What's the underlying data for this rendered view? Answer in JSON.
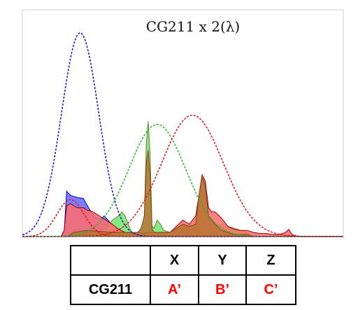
{
  "chart_data": {
    "type": "area",
    "title": "CG211 x 2(λ)",
    "xlabel": "",
    "ylabel": "",
    "grid": false,
    "legend": "none",
    "x_range": [
      0,
      100
    ],
    "y_range": [
      0,
      1
    ],
    "curves": [
      {
        "color": "#1010cc",
        "style": "dashed",
        "center": 18,
        "width": 5.8,
        "peak": 0.99
      },
      {
        "color": "#22bb22",
        "style": "dashed",
        "center": 42,
        "width": 8.8,
        "peak": 0.545
      },
      {
        "color": "#dd1111",
        "style": "dashed",
        "center": 53,
        "width": 9.6,
        "peak": 0.59
      },
      {
        "color": "#dd1111",
        "style": "dashed",
        "center": 15,
        "width": 4.2,
        "peak": 0.18
      }
    ],
    "spectra": [
      {
        "fill": "#6666ff",
        "stroke": "#0000cc",
        "x": [
          12,
          13,
          13.8,
          15,
          17,
          19,
          21,
          23,
          24.5,
          25.5,
          27,
          28.5,
          30,
          32
        ],
        "y": [
          0,
          0.02,
          0.22,
          0.2,
          0.19,
          0.185,
          0.13,
          0.09,
          0.085,
          0.1,
          0.075,
          0.03,
          0.01,
          0
        ]
      },
      {
        "fill": "#6ee86e",
        "stroke": "#777733",
        "x": [
          19,
          22,
          24,
          26,
          28,
          30,
          31,
          32,
          33,
          34,
          35,
          36,
          37,
          38,
          38.6,
          39.2,
          39.8,
          40.4,
          41,
          42,
          43,
          44,
          46,
          48,
          50,
          52,
          54,
          56,
          58,
          60,
          62,
          64,
          66,
          68,
          70,
          72
        ],
        "y": [
          0,
          0.01,
          0.02,
          0.04,
          0.08,
          0.1,
          0.12,
          0.1,
          0.06,
          0.02,
          0.01,
          0.02,
          0.04,
          0.1,
          0.45,
          0.56,
          0.4,
          0.05,
          0.04,
          0.08,
          0.06,
          0.03,
          0.02,
          0.04,
          0.06,
          0.05,
          0.04,
          0.02,
          0.03,
          0.05,
          0.06,
          0.05,
          0.04,
          0.03,
          0.02,
          0
        ]
      },
      {
        "fill": "#ff6b6b",
        "stroke": "#990000",
        "x": [
          12,
          13,
          13.8,
          15,
          17,
          19,
          20,
          22,
          24,
          26,
          28,
          30,
          32,
          34,
          36,
          38,
          40,
          42,
          44,
          46,
          48,
          50,
          52,
          54,
          55,
          56,
          57,
          58,
          59,
          60,
          62,
          64,
          66,
          68,
          70,
          72,
          74,
          76,
          78,
          80,
          82,
          83,
          84,
          86
        ],
        "y": [
          0,
          0.03,
          0.15,
          0.16,
          0.14,
          0.14,
          0.13,
          0.12,
          0.1,
          0.08,
          0.06,
          0.035,
          0.02,
          0.015,
          0.02,
          0.015,
          0.02,
          0.02,
          0.02,
          0.02,
          0.05,
          0.08,
          0.06,
          0.1,
          0.2,
          0.3,
          0.27,
          0.14,
          0.12,
          0.12,
          0.09,
          0.05,
          0.035,
          0.03,
          0.03,
          0.02,
          0.015,
          0.015,
          0.01,
          0.01,
          0.02,
          0.035,
          0.01,
          0
        ]
      },
      {
        "fill": "#b87333",
        "stroke": "#7a4a1a",
        "x": [
          14,
          16,
          20,
          24,
          28,
          32,
          34,
          36,
          37,
          38,
          38.6,
          39.2,
          39.8,
          40.4,
          41,
          42,
          46,
          48,
          50,
          52,
          54,
          55,
          56,
          57,
          58,
          60,
          62,
          64,
          66,
          70,
          72
        ],
        "y": [
          0,
          0.02,
          0.03,
          0.025,
          0.02,
          0.02,
          0.02,
          0.02,
          0.04,
          0.1,
          0.35,
          0.42,
          0.3,
          0.04,
          0.02,
          0.02,
          0.02,
          0.04,
          0.06,
          0.05,
          0.06,
          0.2,
          0.29,
          0.25,
          0.1,
          0.06,
          0.03,
          0.02,
          0.01,
          0.01,
          0
        ]
      }
    ]
  },
  "table": {
    "headers": [
      "",
      "X",
      "Y",
      "Z"
    ],
    "rows": [
      {
        "label": "CG211",
        "values": [
          "A’",
          "B’",
          "C’"
        ]
      }
    ]
  }
}
